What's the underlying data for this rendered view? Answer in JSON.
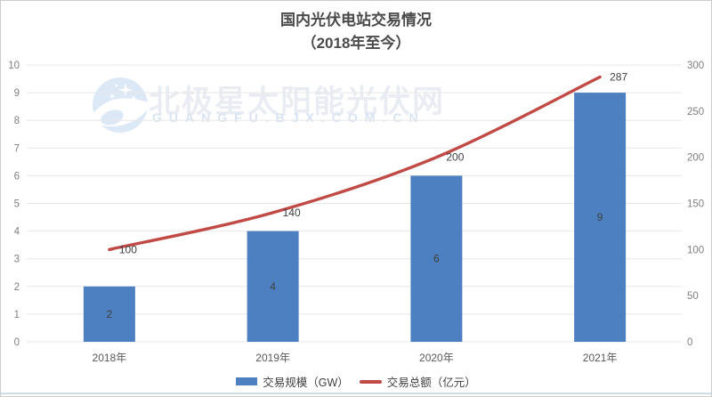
{
  "title": {
    "line1": "国内光伏电站交易情况",
    "line2": "（2018年至今）"
  },
  "watermark": {
    "cn": "北极星太阳能光伏网",
    "en": "GUANGFU.BJX.COM.CN",
    "logo_color": "#dce8f6"
  },
  "chart_data": {
    "type": "bar",
    "subtype": "bar+line combo, dual axis",
    "title": "国内光伏电站交易情况（2018年至今）",
    "categories": [
      "2018年",
      "2019年",
      "2020年",
      "2021年"
    ],
    "series": [
      {
        "name": "交易规模（GW）",
        "type": "bar",
        "axis": "left",
        "values": [
          2,
          4,
          6,
          9
        ],
        "color": "#4d80c0",
        "label_color": "#3f3f3f"
      },
      {
        "name": "交易总额（亿元）",
        "type": "line",
        "axis": "right",
        "values": [
          100,
          140,
          200,
          287
        ],
        "color": "#c14a46",
        "label_color": "#3f3f3f"
      }
    ],
    "left_axis": {
      "min": 0,
      "max": 10,
      "step": 1,
      "tick_color": "#808080"
    },
    "right_axis": {
      "min": 0,
      "max": 300,
      "step": 50,
      "tick_color": "#808080"
    },
    "grid": "horizontal",
    "gridline_color": "#e8e8e8",
    "xlabel": "",
    "ylabel": "",
    "x_tick_color": "#595959",
    "legend_position": "bottom"
  },
  "legend": [
    {
      "label": "交易规模（GW）",
      "color": "#4d80c0",
      "swatch": "bar"
    },
    {
      "label": "交易总额（亿元）",
      "color": "#c14a46",
      "swatch": "line"
    }
  ]
}
